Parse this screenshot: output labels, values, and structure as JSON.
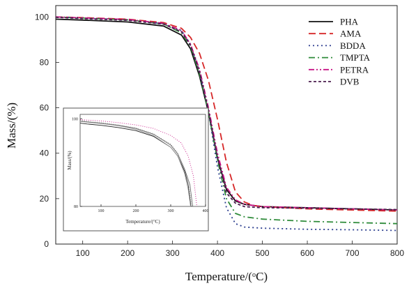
{
  "chart_data": [
    {
      "type": "line",
      "title": "",
      "xlabel": "Temperature/(°C)",
      "ylabel": "Mass/(%)",
      "xlim": [
        40,
        800
      ],
      "ylim": [
        0,
        105
      ],
      "xticks": [
        100,
        200,
        300,
        400,
        500,
        600,
        700,
        800
      ],
      "yticks": [
        0,
        20,
        40,
        60,
        80,
        100
      ],
      "grid": false,
      "legend_position": "top-right",
      "series": [
        {
          "name": "PHA",
          "color": "#111111",
          "dash": "solid",
          "x": [
            40,
            100,
            200,
            280,
            320,
            340,
            360,
            380,
            400,
            420,
            440,
            460,
            500,
            600,
            700,
            800
          ],
          "y": [
            99,
            98.6,
            97.8,
            96,
            92,
            86,
            74,
            58,
            38,
            24,
            19,
            17.5,
            16.5,
            16,
            15.5,
            15
          ]
        },
        {
          "name": "AMA",
          "color": "#d62728",
          "dash": "dashed",
          "x": [
            40,
            100,
            200,
            280,
            320,
            340,
            360,
            380,
            400,
            420,
            440,
            460,
            480,
            500,
            600,
            700,
            800
          ],
          "y": [
            100,
            99.7,
            99,
            97.5,
            95,
            91,
            84,
            72,
            55,
            36,
            23,
            18.5,
            17,
            16.5,
            15.5,
            15,
            14.5
          ]
        },
        {
          "name": "BDDA",
          "color": "#2c3e8f",
          "dash": "dotted",
          "x": [
            40,
            100,
            200,
            280,
            320,
            340,
            360,
            380,
            400,
            420,
            440,
            460,
            500,
            600,
            700,
            800
          ],
          "y": [
            100,
            99.5,
            98.7,
            97,
            94,
            88,
            76,
            58,
            34,
            16,
            9,
            7.5,
            7,
            6.5,
            6.3,
            6
          ]
        },
        {
          "name": "TMPTA",
          "color": "#2e8b3a",
          "dash": "dashdot",
          "x": [
            40,
            100,
            200,
            280,
            320,
            340,
            360,
            380,
            400,
            420,
            440,
            460,
            500,
            600,
            700,
            800
          ],
          "y": [
            100,
            99.5,
            98.7,
            97,
            93,
            87,
            75,
            58,
            37,
            20,
            13.5,
            12,
            11,
            10,
            9.5,
            9
          ]
        },
        {
          "name": "PETRA",
          "color": "#c71585",
          "dash": "dashdotdot",
          "x": [
            40,
            100,
            200,
            280,
            320,
            340,
            360,
            380,
            400,
            420,
            440,
            460,
            500,
            600,
            700,
            800
          ],
          "y": [
            100,
            99.6,
            98.9,
            97.2,
            94,
            88,
            77,
            60,
            40,
            25,
            19.5,
            17.5,
            16.5,
            16,
            15.5,
            15
          ]
        },
        {
          "name": "DVB",
          "color": "#4b1f4f",
          "dash": "shortdash",
          "x": [
            40,
            100,
            200,
            280,
            320,
            340,
            360,
            380,
            400,
            420,
            440,
            460,
            500,
            600,
            700,
            800
          ],
          "y": [
            99.8,
            99.3,
            98.5,
            96.8,
            93.5,
            87.5,
            76,
            59,
            38,
            22.5,
            18,
            16.5,
            16,
            15.8,
            15.5,
            15.2
          ]
        }
      ]
    },
    {
      "type": "line",
      "title": "",
      "xlabel": "Temperature/(°C)",
      "ylabel": "Mass/(%)",
      "xlim": [
        40,
        400
      ],
      "ylim": [
        80,
        101
      ],
      "xticks": [
        100,
        200,
        300,
        400
      ],
      "yticks": [
        80,
        100
      ],
      "grid": false,
      "series": [
        {
          "color": "#222222",
          "dash": "solid",
          "x": [
            40,
            60,
            100,
            150,
            200,
            250,
            300,
            320,
            340,
            350,
            358
          ],
          "y": [
            99,
            98.8,
            98.5,
            98,
            97.3,
            96,
            93.5,
            91.5,
            88,
            85,
            80
          ]
        },
        {
          "color": "#666666",
          "dash": "solid",
          "x": [
            40,
            60,
            100,
            150,
            200,
            250,
            300,
            320,
            340,
            355,
            363
          ],
          "y": [
            99.5,
            99.3,
            99,
            98.5,
            97.8,
            96.5,
            94,
            92,
            88.5,
            85,
            80
          ]
        },
        {
          "color": "#888888",
          "dash": "dotted",
          "x": [
            40,
            60,
            100,
            150,
            200,
            250,
            300,
            320,
            340,
            352,
            360
          ],
          "y": [
            99.6,
            99.4,
            99.1,
            98.6,
            97.9,
            96.6,
            94.2,
            92.2,
            88.5,
            84.5,
            80
          ]
        },
        {
          "color": "#999999",
          "dash": "solid",
          "x": [
            40,
            60,
            100,
            150,
            200,
            250,
            300,
            320,
            340,
            350,
            357
          ],
          "y": [
            99.4,
            99.2,
            98.9,
            98.4,
            97.6,
            96.2,
            93.5,
            91.5,
            87.5,
            84,
            80
          ]
        },
        {
          "color": "#c71585",
          "dash": "dotted",
          "x": [
            40,
            60,
            100,
            150,
            200,
            250,
            300,
            330,
            350,
            365,
            375
          ],
          "y": [
            99.8,
            99.7,
            99.5,
            99.1,
            98.6,
            97.8,
            96.2,
            94.5,
            91.5,
            87,
            80
          ]
        }
      ]
    }
  ]
}
